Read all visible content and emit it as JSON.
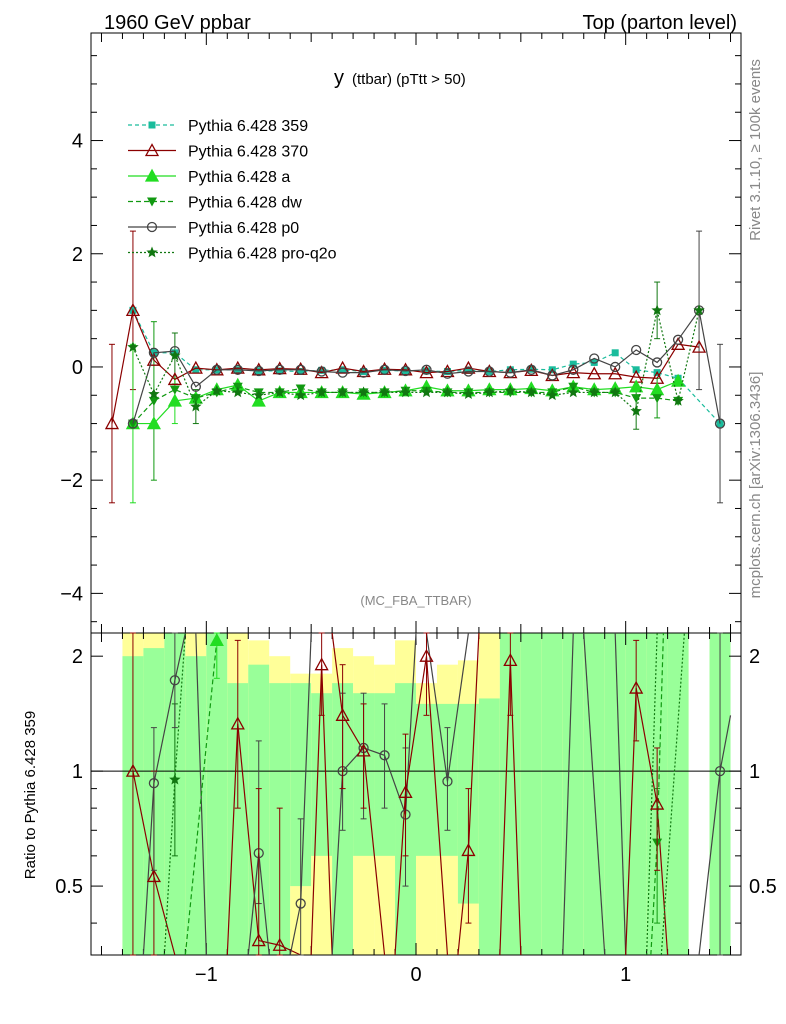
{
  "header": {
    "left": "1960 GeV ppbar",
    "right": "Top (parton level)"
  },
  "side_text": {
    "rivet": "Rivet 3.1.10, ≥ 100k events",
    "site": "mcplots.cern.ch [arXiv:1306.3436]"
  },
  "colors": {
    "p359": "#1abc9c",
    "p370": "#8b0000",
    "pa": "#22dd22",
    "pdw": "#119911",
    "pp0": "#444444",
    "pq2o": "#117711",
    "band_yellow": "#ffff99",
    "band_green": "#99ff99"
  },
  "chart_data": {
    "type": "line",
    "title_main": "y",
    "title_sub": "(ttbar)  (pTtt > 50)",
    "analysis_label": "(MC_FBA_TTBAR)",
    "ylabel_ratio": "Ratio to Pythia 6.428 359",
    "xlim": [
      -1.55,
      1.55
    ],
    "ylim": [
      -4.7,
      5.9
    ],
    "ratio_ylim": [
      0.33,
      2.3
    ],
    "main_yticks": [
      -4,
      -2,
      0,
      2,
      4
    ],
    "main_ytick_labels": [
      "−4",
      "−2",
      "0",
      "2",
      "4"
    ],
    "ratio_yticks": [
      0.5,
      1,
      2
    ],
    "ratio_ytick_labels": [
      "0.5",
      "1",
      "2"
    ],
    "xticks": [
      -1,
      0,
      1
    ],
    "xtick_labels": [
      "−1",
      "0",
      "1"
    ],
    "x": [
      -1.45,
      -1.35,
      -1.25,
      -1.15,
      -1.05,
      -0.95,
      -0.85,
      -0.75,
      -0.65,
      -0.55,
      -0.45,
      -0.35,
      -0.25,
      -0.15,
      -0.05,
      0.05,
      0.15,
      0.25,
      0.35,
      0.45,
      0.55,
      0.65,
      0.75,
      0.85,
      0.95,
      1.05,
      1.15,
      1.25,
      1.35,
      1.45
    ],
    "series": [
      {
        "name": "Pythia 6.428 359",
        "key": "p359",
        "dash": "4,3",
        "marker": "square",
        "values": [
          null,
          1.0,
          0.25,
          0.25,
          -0.05,
          -0.05,
          -0.05,
          -0.07,
          -0.07,
          -0.08,
          -0.06,
          -0.05,
          -0.08,
          -0.06,
          -0.07,
          -0.07,
          -0.08,
          -0.06,
          -0.08,
          -0.05,
          -0.04,
          -0.05,
          0.05,
          0.08,
          0.25,
          -0.05,
          -0.1,
          -0.2,
          null,
          -1.0
        ]
      },
      {
        "name": "Pythia 6.428 370",
        "key": "p370",
        "dash": "",
        "marker": "triangle-open",
        "values": [
          -1.0,
          1.0,
          0.12,
          -0.22,
          -0.02,
          -0.05,
          -0.02,
          -0.05,
          -0.03,
          -0.04,
          -0.1,
          -0.02,
          -0.08,
          -0.04,
          -0.05,
          -0.1,
          -0.08,
          -0.02,
          -0.08,
          -0.1,
          -0.06,
          -0.15,
          -0.1,
          -0.12,
          -0.12,
          -0.18,
          -0.2,
          0.4,
          0.35,
          null
        ]
      },
      {
        "name": "Pythia 6.428 a",
        "key": "pa",
        "dash": "",
        "marker": "triangle",
        "values": [
          null,
          -1.0,
          -1.0,
          -0.6,
          -0.55,
          -0.4,
          -0.32,
          -0.6,
          -0.45,
          -0.45,
          -0.45,
          -0.45,
          -0.48,
          -0.45,
          -0.42,
          -0.35,
          -0.42,
          -0.42,
          -0.4,
          -0.4,
          -0.38,
          -0.42,
          -0.35,
          -0.4,
          -0.38,
          -0.35,
          -0.4,
          -0.25,
          null,
          null
        ]
      },
      {
        "name": "Pythia 6.428 dw",
        "key": "pdw",
        "dash": "5,3",
        "marker": "triangle-down",
        "values": [
          null,
          -1.0,
          -0.6,
          -0.4,
          -0.55,
          -0.45,
          -0.35,
          -0.45,
          -0.45,
          -0.38,
          -0.45,
          -0.45,
          -0.45,
          -0.45,
          -0.42,
          -0.42,
          -0.45,
          -0.45,
          -0.45,
          -0.45,
          -0.45,
          -0.45,
          -0.35,
          -0.45,
          -0.45,
          -0.55,
          -0.55,
          -0.6,
          null,
          null
        ]
      },
      {
        "name": "Pythia 6.428 p0",
        "key": "pp0",
        "dash": "",
        "marker": "circle-open",
        "values": [
          null,
          -1.0,
          0.25,
          0.28,
          -0.35,
          -0.05,
          -0.05,
          -0.07,
          -0.05,
          -0.05,
          -0.08,
          -0.1,
          -0.1,
          -0.05,
          -0.07,
          -0.05,
          -0.12,
          -0.08,
          -0.08,
          -0.1,
          -0.05,
          -0.15,
          -0.05,
          0.15,
          0.0,
          0.3,
          0.08,
          0.48,
          1.0,
          -1.0
        ]
      },
      {
        "name": "Pythia 6.428 pro-q2o",
        "key": "pq2o",
        "dash": "2,2",
        "marker": "star",
        "values": [
          null,
          0.35,
          -0.48,
          0.2,
          -0.7,
          -0.42,
          -0.45,
          -0.5,
          -0.45,
          -0.5,
          -0.45,
          -0.45,
          -0.45,
          -0.45,
          -0.45,
          -0.45,
          -0.45,
          -0.48,
          -0.45,
          -0.42,
          -0.45,
          -0.5,
          -0.45,
          -0.45,
          -0.45,
          -0.78,
          1.0,
          -0.6,
          1.0,
          null
        ]
      }
    ],
    "error_bars": [
      {
        "key": "p370",
        "x": -1.45,
        "y": -1.0,
        "lo": -2.4,
        "hi": 0.4
      },
      {
        "key": "p370",
        "x": -1.35,
        "y": 1.0,
        "lo": -0.4,
        "hi": 2.4
      },
      {
        "key": "pa",
        "x": -1.35,
        "y": -1.0,
        "lo": -2.4,
        "hi": 0.4
      },
      {
        "key": "pdw",
        "x": -1.25,
        "y": -0.6,
        "lo": -2.0,
        "hi": 0.8
      },
      {
        "key": "pq2o",
        "x": -1.15,
        "y": 0.2,
        "lo": -0.3,
        "hi": 0.6
      },
      {
        "key": "pa",
        "x": -1.15,
        "y": -0.6,
        "lo": -1.0,
        "hi": -0.2
      },
      {
        "key": "pq2o",
        "x": -1.05,
        "y": -0.7,
        "lo": -1.0,
        "hi": -0.4
      },
      {
        "key": "pq2o",
        "x": 1.05,
        "y": -0.78,
        "lo": -1.1,
        "hi": -0.4
      },
      {
        "key": "pq2o",
        "x": 1.15,
        "y": 1.0,
        "lo": 0.5,
        "hi": 1.5
      },
      {
        "key": "pdw",
        "x": 1.15,
        "y": -0.55,
        "lo": -0.9,
        "hi": -0.2
      },
      {
        "key": "pp0",
        "x": 1.35,
        "y": 1.0,
        "lo": -0.4,
        "hi": 2.4
      },
      {
        "key": "pp0",
        "x": 1.45,
        "y": -1.0,
        "lo": -2.4,
        "hi": 0.4
      }
    ],
    "ratio_bands": {
      "x_edges": [
        -1.4,
        -1.3,
        -1.2,
        -1.1,
        -1.0,
        -0.9,
        -0.8,
        -0.7,
        -0.6,
        -0.5,
        -0.4,
        -0.3,
        -0.2,
        -0.1,
        0.0,
        0.1,
        0.2,
        0.3,
        0.4,
        0.5,
        0.6,
        0.7,
        0.8,
        0.9,
        1.0,
        1.1,
        1.2,
        1.3,
        1.4,
        1.5
      ],
      "yellow": [
        [
          0.33,
          2.3
        ],
        [
          0.33,
          2.3
        ],
        [
          0.33,
          2.3
        ],
        [
          0.33,
          2.3
        ],
        [
          0.33,
          2.3
        ],
        [
          0.33,
          2.3
        ],
        [
          0.33,
          2.2
        ],
        [
          0.33,
          2.0
        ],
        [
          0.33,
          1.8
        ],
        [
          0.33,
          1.8
        ],
        [
          0.33,
          2.1
        ],
        [
          0.33,
          2.0
        ],
        [
          0.33,
          1.9
        ],
        [
          0.33,
          2.2
        ],
        [
          0.33,
          1.7
        ],
        [
          0.33,
          1.9
        ],
        [
          0.33,
          1.95
        ],
        [
          0.33,
          2.3
        ],
        [
          0.33,
          2.3
        ],
        [
          0.33,
          2.3
        ],
        [
          0.33,
          2.3
        ],
        [
          0.33,
          2.3
        ],
        [
          0.33,
          2.3
        ],
        [
          0.33,
          2.3
        ],
        [
          0.33,
          2.3
        ],
        [
          0.33,
          2.3
        ],
        [
          0.33,
          2.3
        ],
        [
          null,
          null
        ],
        [
          0.33,
          2.3
        ]
      ],
      "green": [
        [
          0.33,
          2.0
        ],
        [
          0.33,
          2.1
        ],
        [
          0.33,
          2.3
        ],
        [
          0.33,
          2.0
        ],
        [
          0.33,
          2.3
        ],
        [
          0.33,
          1.7
        ],
        [
          0.33,
          1.9
        ],
        [
          0.33,
          1.7
        ],
        [
          0.5,
          1.7
        ],
        [
          0.6,
          1.6
        ],
        [
          0.33,
          1.7
        ],
        [
          0.6,
          1.6
        ],
        [
          0.6,
          1.6
        ],
        [
          0.33,
          1.7
        ],
        [
          0.6,
          1.5
        ],
        [
          0.6,
          1.5
        ],
        [
          0.45,
          1.5
        ],
        [
          0.33,
          1.55
        ],
        [
          0.33,
          2.3
        ],
        [
          0.33,
          2.3
        ],
        [
          0.33,
          2.3
        ],
        [
          0.33,
          2.3
        ],
        [
          0.33,
          2.3
        ],
        [
          0.33,
          2.3
        ],
        [
          0.33,
          2.3
        ],
        [
          0.33,
          2.3
        ],
        [
          0.33,
          2.3
        ],
        [
          null,
          null
        ],
        [
          0.33,
          2.3
        ]
      ]
    },
    "ratio_points": [
      {
        "key": "p370",
        "x": -1.35,
        "y": 1.0,
        "lo": 0.33,
        "hi": 2.3
      },
      {
        "key": "p370",
        "x": -1.25,
        "y": 0.53,
        "lo": 0.33,
        "hi": 1.0
      },
      {
        "key": "pq2o",
        "x": -1.15,
        "y": 0.95,
        "lo": 0.6,
        "hi": 1.5
      },
      {
        "key": "pp0",
        "x": -1.15,
        "y": 1.73,
        "lo": 1.3,
        "hi": 2.3
      },
      {
        "key": "pp0",
        "x": -1.25,
        "y": 0.93,
        "lo": 0.55,
        "hi": 1.3
      },
      {
        "key": "pa",
        "x": -0.95,
        "y": 2.2,
        "lo": 1.75,
        "hi": 2.3
      },
      {
        "key": "p370",
        "x": -0.85,
        "y": 1.33,
        "lo": 0.8,
        "hi": 2.2
      },
      {
        "key": "pp0",
        "x": -0.75,
        "y": 0.61,
        "lo": 0.45,
        "hi": 1.2
      },
      {
        "key": "p370",
        "x": -0.75,
        "y": 0.36,
        "lo": 0.33,
        "hi": 0.9
      },
      {
        "key": "p370",
        "x": -0.65,
        "y": 0.35,
        "lo": 0.33,
        "hi": 0.8
      },
      {
        "key": "pp0",
        "x": -0.55,
        "y": 0.45,
        "lo": 0.33,
        "hi": 0.75
      },
      {
        "key": "p370",
        "x": -0.45,
        "y": 1.9,
        "lo": 1.4,
        "hi": 2.3
      },
      {
        "key": "pp0",
        "x": -0.35,
        "y": 1.0,
        "lo": 0.7,
        "hi": 1.6
      },
      {
        "key": "p370",
        "x": -0.35,
        "y": 1.4,
        "lo": 0.9,
        "hi": 1.9
      },
      {
        "key": "pp0",
        "x": -0.25,
        "y": 1.15,
        "lo": 0.75,
        "hi": 1.6
      },
      {
        "key": "p370",
        "x": -0.25,
        "y": 1.13,
        "lo": 0.8,
        "hi": 1.5
      },
      {
        "key": "pp0",
        "x": -0.15,
        "y": 1.1,
        "lo": 0.8,
        "hi": 1.5
      },
      {
        "key": "pp0",
        "x": -0.05,
        "y": 0.77,
        "lo": 0.5,
        "hi": 1.15
      },
      {
        "key": "p370",
        "x": -0.05,
        "y": 0.88,
        "lo": 0.6,
        "hi": 1.25
      },
      {
        "key": "p370",
        "x": 0.05,
        "y": 2.0,
        "lo": 1.4,
        "hi": 2.3
      },
      {
        "key": "pp0",
        "x": 0.15,
        "y": 0.94,
        "lo": 0.7,
        "hi": 1.3
      },
      {
        "key": "p370",
        "x": 0.25,
        "y": 0.62,
        "lo": 0.4,
        "hi": 0.9
      },
      {
        "key": "p370",
        "x": 0.45,
        "y": 1.95,
        "lo": 1.4,
        "hi": 2.3
      },
      {
        "key": "p370",
        "x": 1.05,
        "y": 1.65,
        "lo": 1.2,
        "hi": 2.2
      },
      {
        "key": "pdw",
        "x": 1.15,
        "y": 0.65,
        "lo": 0.4,
        "hi": 0.9
      },
      {
        "key": "p370",
        "x": 1.15,
        "y": 0.82,
        "lo": 0.55,
        "hi": 1.15
      },
      {
        "key": "pp0",
        "x": 1.45,
        "y": 1.0,
        "lo": 0.33,
        "hi": 2.3
      }
    ],
    "ratio_lines": [
      {
        "key": "p370",
        "pts": [
          [
            -1.35,
            1.0
          ],
          [
            -1.25,
            0.53
          ],
          [
            -1.15,
            0.33
          ]
        ]
      },
      {
        "key": "pp0",
        "pts": [
          [
            -1.3,
            0.33
          ],
          [
            -1.25,
            0.93
          ],
          [
            -1.15,
            1.73
          ],
          [
            -1.1,
            2.3
          ]
        ]
      },
      {
        "key": "pp0",
        "pts": [
          [
            -1.05,
            2.3
          ],
          [
            -1.0,
            0.33
          ]
        ]
      },
      {
        "key": "pq2o",
        "pts": [
          [
            -1.2,
            0.33
          ],
          [
            -1.15,
            0.95
          ],
          [
            -1.1,
            2.3
          ]
        ]
      },
      {
        "key": "pdw",
        "pts": [
          [
            -1.1,
            0.33
          ],
          [
            -0.95,
            2.2
          ]
        ]
      },
      {
        "key": "p370",
        "pts": [
          [
            -0.9,
            0.33
          ],
          [
            -0.85,
            1.33
          ],
          [
            -0.75,
            0.36
          ],
          [
            -0.65,
            0.35
          ],
          [
            -0.55,
            0.33
          ]
        ]
      },
      {
        "key": "pp0",
        "pts": [
          [
            -0.8,
            0.33
          ],
          [
            -0.75,
            0.61
          ],
          [
            -0.7,
            0.33
          ]
        ]
      },
      {
        "key": "pp0",
        "pts": [
          [
            -0.6,
            0.33
          ],
          [
            -0.55,
            0.45
          ],
          [
            -0.5,
            2.3
          ]
        ]
      },
      {
        "key": "p370",
        "pts": [
          [
            -0.5,
            0.33
          ],
          [
            -0.45,
            1.9
          ],
          [
            -0.4,
            0.33
          ]
        ]
      },
      {
        "key": "p370",
        "pts": [
          [
            -0.4,
            2.3
          ],
          [
            -0.35,
            1.4
          ],
          [
            -0.25,
            1.13
          ],
          [
            -0.15,
            0.33
          ]
        ]
      },
      {
        "key": "pp0",
        "pts": [
          [
            -0.4,
            0.33
          ],
          [
            -0.35,
            1.0
          ],
          [
            -0.25,
            1.15
          ],
          [
            -0.15,
            1.1
          ],
          [
            -0.05,
            0.77
          ],
          [
            0.0,
            2.3
          ]
        ]
      },
      {
        "key": "p370",
        "pts": [
          [
            -0.1,
            0.33
          ],
          [
            -0.05,
            0.88
          ],
          [
            0.05,
            2.0
          ],
          [
            0.15,
            0.33
          ]
        ]
      },
      {
        "key": "pp0",
        "pts": [
          [
            0.05,
            2.3
          ],
          [
            0.15,
            0.94
          ],
          [
            0.25,
            2.3
          ]
        ]
      },
      {
        "key": "p370",
        "pts": [
          [
            0.2,
            0.33
          ],
          [
            0.25,
            0.62
          ],
          [
            0.3,
            2.3
          ]
        ]
      },
      {
        "key": "p370",
        "pts": [
          [
            0.4,
            0.33
          ],
          [
            0.45,
            1.95
          ],
          [
            0.5,
            0.33
          ]
        ]
      },
      {
        "key": "pp0",
        "pts": [
          [
            0.7,
            0.33
          ],
          [
            0.75,
            2.3
          ]
        ]
      },
      {
        "key": "pp0",
        "pts": [
          [
            0.8,
            2.3
          ],
          [
            0.9,
            0.33
          ]
        ]
      },
      {
        "key": "pp0",
        "pts": [
          [
            0.95,
            2.3
          ],
          [
            1.0,
            0.33
          ]
        ]
      },
      {
        "key": "p370",
        "pts": [
          [
            1.0,
            0.33
          ],
          [
            1.05,
            1.65
          ],
          [
            1.15,
            0.82
          ],
          [
            1.2,
            0.33
          ]
        ]
      },
      {
        "key": "pq2o",
        "pts": [
          [
            1.1,
            0.33
          ],
          [
            1.15,
            2.3
          ]
        ]
      },
      {
        "key": "pdw",
        "pts": [
          [
            1.12,
            0.33
          ],
          [
            1.15,
            0.65
          ],
          [
            1.18,
            2.3
          ]
        ]
      },
      {
        "key": "pq2o",
        "pts": [
          [
            1.17,
            0.33
          ],
          [
            1.28,
            2.3
          ]
        ]
      },
      {
        "key": "pp0",
        "pts": [
          [
            1.35,
            0.33
          ],
          [
            1.45,
            1.0
          ],
          [
            1.5,
            1.4
          ]
        ]
      }
    ]
  }
}
